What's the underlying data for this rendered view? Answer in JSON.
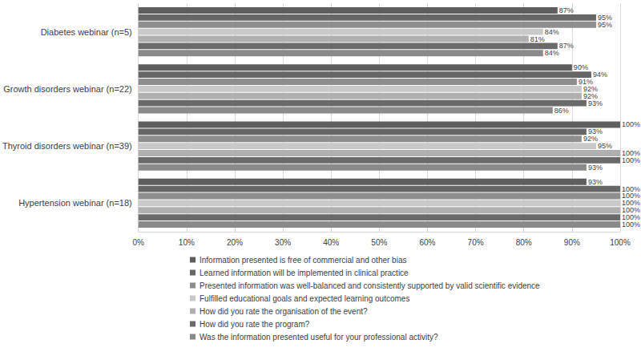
{
  "chart_data": {
    "type": "bar",
    "orientation": "horizontal",
    "categories": [
      "Diabetes webinar (n=5)",
      "Growth disorders webinar (n=22)",
      "Thyroid disorders webinar (n=39)",
      "Hypertension webinar (n=18)"
    ],
    "series": [
      {
        "name": "Information presented is free of commercial and other bias",
        "color": "#5e5e5e",
        "values": [
          87,
          90,
          100,
          93
        ],
        "value_labels": [
          "87%",
          "90%",
          "100%",
          "93%"
        ]
      },
      {
        "name": "Learned information will be implemented in clinical practice",
        "color": "#666666",
        "values": [
          95,
          94,
          93,
          100
        ],
        "value_labels": [
          "95%",
          "94%",
          "93%",
          "100%"
        ]
      },
      {
        "name": "Presented information was well-balanced and consistently supported by valid scientific evidence",
        "color": "#8e8e8e",
        "values": [
          95,
          91,
          92,
          100
        ],
        "value_labels": [
          "95%",
          "91%",
          "92%",
          "100%"
        ]
      },
      {
        "name": "Fulfilled educational goals and expected learning outcomes",
        "color": "#c9c9c9",
        "values": [
          84,
          92,
          95,
          100
        ],
        "value_labels": [
          "84%",
          "92%",
          "95%",
          "100%"
        ]
      },
      {
        "name": "How did you rate the organisation of the event?",
        "color": "#b0b0b0",
        "values": [
          81,
          92,
          100,
          100
        ],
        "value_labels": [
          "81%",
          "92%",
          "100%",
          "100%"
        ]
      },
      {
        "name": "How did you rate the program?",
        "color": "#6a6a6a",
        "values": [
          87,
          93,
          100,
          100
        ],
        "value_labels": [
          "87%",
          "93%",
          "100%",
          "100%"
        ]
      },
      {
        "name": "Was the information presented useful for your professional activity?",
        "color": "#8a8a8a",
        "values": [
          84,
          86,
          93,
          100
        ],
        "value_labels": [
          "84%",
          "86%",
          "93%",
          "100%"
        ]
      }
    ],
    "xlim": [
      0,
      100
    ],
    "xticks": [
      {
        "value": 0,
        "label": "0%"
      },
      {
        "value": 10,
        "label": "10%"
      },
      {
        "value": 20,
        "label": "20%"
      },
      {
        "value": 30,
        "label": "30%"
      },
      {
        "value": 40,
        "label": "40%"
      },
      {
        "value": 50,
        "label": "50%"
      },
      {
        "value": 60,
        "label": "60%"
      },
      {
        "value": 70,
        "label": "70%"
      },
      {
        "value": 80,
        "label": "80%"
      },
      {
        "value": 90,
        "label": "90%"
      },
      {
        "value": 100,
        "label": "100%"
      }
    ],
    "grid": true,
    "legend": "bottom",
    "data_labels": true
  }
}
